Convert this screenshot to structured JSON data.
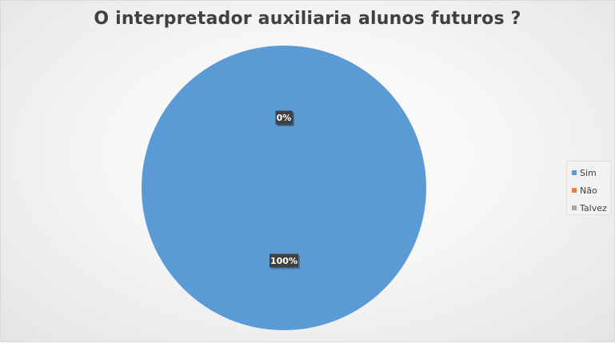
{
  "chart_data": {
    "type": "pie",
    "title": "O interpretador auxiliaria alunos futuros ?",
    "categories": [
      "Sim",
      "Não",
      "Talvez"
    ],
    "values": [
      100,
      0,
      0
    ],
    "data_labels": [
      "100%",
      "0%",
      "0%"
    ],
    "colors": [
      "#5b9bd5",
      "#ed7d31",
      "#a5a5a5"
    ],
    "legend_position": "right"
  }
}
